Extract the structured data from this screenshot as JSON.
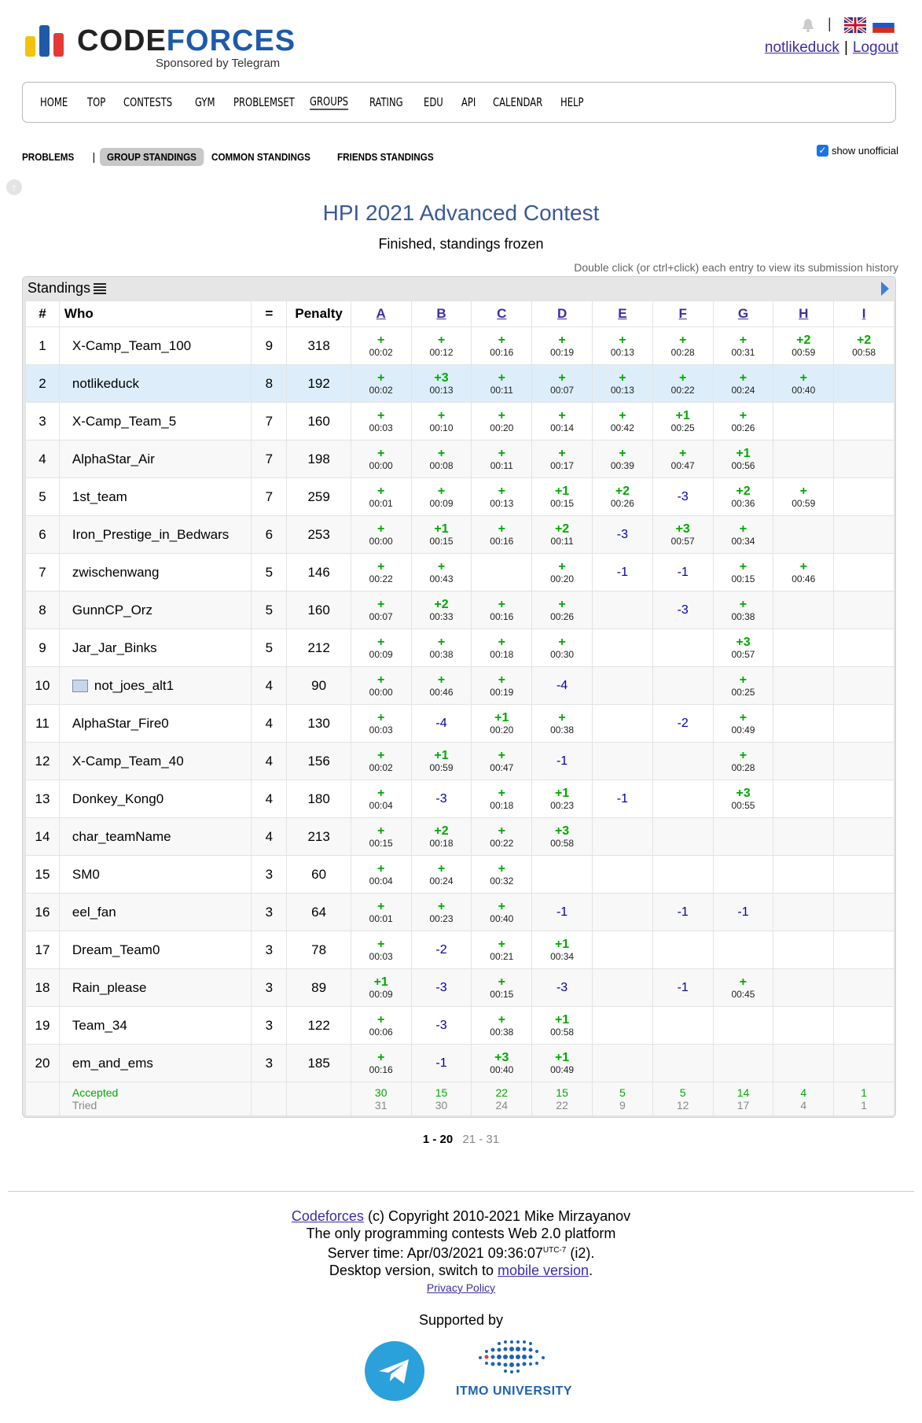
{
  "header": {
    "logo_part1": "CODE",
    "logo_part2": "FORCES",
    "logo_sub": "Sponsored by Telegram",
    "username": "notlikeduck",
    "separator": "|",
    "logout": "Logout",
    "colors": {
      "yellow": "#f4c20d",
      "blue": "#1e5aa8",
      "red": "#e53935"
    }
  },
  "menu": [
    "HOME",
    "TOP",
    "CONTESTS",
    "GYM",
    "PROBLEMSET",
    "GROUPS",
    "RATING",
    "EDU",
    "API",
    "CALENDAR",
    "HELP"
  ],
  "menu_active": "GROUPS",
  "second_menu": {
    "problems": "PROBLEMS",
    "pipe": "|",
    "group_standings": "GROUP STANDINGS",
    "common_standings": "COMMON STANDINGS",
    "friends_standings": "FRIENDS STANDINGS",
    "show_unofficial": "show unofficial"
  },
  "contest": {
    "title": "HPI 2021 Advanced Contest",
    "status": "Finished, standings frozen",
    "hint": "Double click (or ctrl+click) each entry to view its submission history"
  },
  "standings": {
    "caption": "Standings",
    "headers": {
      "rank": "#",
      "who": "Who",
      "solved": "=",
      "penalty": "Penalty"
    },
    "problems": [
      "A",
      "B",
      "C",
      "D",
      "E",
      "F",
      "G",
      "H",
      "I"
    ],
    "rows": [
      {
        "rank": "1",
        "who": "X-Camp_Team_100",
        "solved": "9",
        "penalty": "318",
        "cells": [
          [
            "+",
            "00:02"
          ],
          [
            "+",
            "00:12"
          ],
          [
            "+",
            "00:16"
          ],
          [
            "+",
            "00:19"
          ],
          [
            "+",
            "00:13"
          ],
          [
            "+",
            "00:28"
          ],
          [
            "+",
            "00:31"
          ],
          [
            "+2",
            "00:59"
          ],
          [
            "+2",
            "00:58"
          ]
        ]
      },
      {
        "rank": "2",
        "who": "notlikeduck",
        "solved": "8",
        "penalty": "192",
        "me": true,
        "cells": [
          [
            "+",
            "00:02"
          ],
          [
            "+3",
            "00:13"
          ],
          [
            "+",
            "00:11"
          ],
          [
            "+",
            "00:07"
          ],
          [
            "+",
            "00:13"
          ],
          [
            "+",
            "00:22"
          ],
          [
            "+",
            "00:24"
          ],
          [
            "+",
            "00:40"
          ],
          [
            "",
            ""
          ]
        ]
      },
      {
        "rank": "3",
        "who": "X-Camp_Team_5",
        "solved": "7",
        "penalty": "160",
        "cells": [
          [
            "+",
            "00:03"
          ],
          [
            "+",
            "00:10"
          ],
          [
            "+",
            "00:20"
          ],
          [
            "+",
            "00:14"
          ],
          [
            "+",
            "00:42"
          ],
          [
            "+1",
            "00:25"
          ],
          [
            "+",
            "00:26"
          ],
          [
            "",
            ""
          ],
          [
            "",
            ""
          ]
        ]
      },
      {
        "rank": "4",
        "who": "AlphaStar_Air",
        "solved": "7",
        "penalty": "198",
        "cells": [
          [
            "+",
            "00:00"
          ],
          [
            "+",
            "00:08"
          ],
          [
            "+",
            "00:11"
          ],
          [
            "+",
            "00:17"
          ],
          [
            "+",
            "00:39"
          ],
          [
            "+",
            "00:47"
          ],
          [
            "+1",
            "00:56"
          ],
          [
            "",
            ""
          ],
          [
            "",
            ""
          ]
        ]
      },
      {
        "rank": "5",
        "who": "1st_team",
        "solved": "7",
        "penalty": "259",
        "cells": [
          [
            "+",
            "00:01"
          ],
          [
            "+",
            "00:09"
          ],
          [
            "+",
            "00:13"
          ],
          [
            "+1",
            "00:15"
          ],
          [
            "+2",
            "00:26"
          ],
          [
            "-3",
            ""
          ],
          [
            "+2",
            "00:36"
          ],
          [
            "+",
            "00:59"
          ],
          [
            "",
            ""
          ]
        ]
      },
      {
        "rank": "6",
        "who": "Iron_Prestige_in_Bedwars",
        "solved": "6",
        "penalty": "253",
        "cells": [
          [
            "+",
            "00:00"
          ],
          [
            "+1",
            "00:15"
          ],
          [
            "+",
            "00:16"
          ],
          [
            "+2",
            "00:11"
          ],
          [
            "-3",
            ""
          ],
          [
            "+3",
            "00:57"
          ],
          [
            "+",
            "00:34"
          ],
          [
            "",
            ""
          ],
          [
            "",
            ""
          ]
        ]
      },
      {
        "rank": "7",
        "who": "zwischenwang",
        "solved": "5",
        "penalty": "146",
        "cells": [
          [
            "+",
            "00:22"
          ],
          [
            "+",
            "00:43"
          ],
          [
            "",
            ""
          ],
          [
            "+",
            "00:20"
          ],
          [
            "-1",
            ""
          ],
          [
            "-1",
            ""
          ],
          [
            "+",
            "00:15"
          ],
          [
            "+",
            "00:46"
          ],
          [
            "",
            ""
          ]
        ]
      },
      {
        "rank": "8",
        "who": "GunnCP_Orz",
        "solved": "5",
        "penalty": "160",
        "cells": [
          [
            "+",
            "00:07"
          ],
          [
            "+2",
            "00:33"
          ],
          [
            "+",
            "00:16"
          ],
          [
            "+",
            "00:26"
          ],
          [
            "",
            ""
          ],
          [
            "-3",
            ""
          ],
          [
            "+",
            "00:38"
          ],
          [
            "",
            ""
          ],
          [
            "",
            ""
          ]
        ]
      },
      {
        "rank": "9",
        "who": "Jar_Jar_Binks",
        "solved": "5",
        "penalty": "212",
        "cells": [
          [
            "+",
            "00:09"
          ],
          [
            "+",
            "00:38"
          ],
          [
            "+",
            "00:18"
          ],
          [
            "+",
            "00:30"
          ],
          [
            "",
            ""
          ],
          [
            "",
            ""
          ],
          [
            "+3",
            "00:57"
          ],
          [
            "",
            ""
          ],
          [
            "",
            ""
          ]
        ]
      },
      {
        "rank": "10",
        "who": "not_joes_alt1",
        "solved": "4",
        "penalty": "90",
        "flag": true,
        "cells": [
          [
            "+",
            "00:00"
          ],
          [
            "+",
            "00:46"
          ],
          [
            "+",
            "00:19"
          ],
          [
            "-4",
            ""
          ],
          [
            "",
            ""
          ],
          [
            "",
            ""
          ],
          [
            "+",
            "00:25"
          ],
          [
            "",
            ""
          ],
          [
            "",
            ""
          ]
        ]
      },
      {
        "rank": "11",
        "who": "AlphaStar_Fire0",
        "solved": "4",
        "penalty": "130",
        "cells": [
          [
            "+",
            "00:03"
          ],
          [
            "-4",
            ""
          ],
          [
            "+1",
            "00:20"
          ],
          [
            "+",
            "00:38"
          ],
          [
            "",
            ""
          ],
          [
            "-2",
            ""
          ],
          [
            "+",
            "00:49"
          ],
          [
            "",
            ""
          ],
          [
            "",
            ""
          ]
        ]
      },
      {
        "rank": "12",
        "who": "X-Camp_Team_40",
        "solved": "4",
        "penalty": "156",
        "cells": [
          [
            "+",
            "00:02"
          ],
          [
            "+1",
            "00:59"
          ],
          [
            "+",
            "00:47"
          ],
          [
            "-1",
            ""
          ],
          [
            "",
            ""
          ],
          [
            "",
            ""
          ],
          [
            "+",
            "00:28"
          ],
          [
            "",
            ""
          ],
          [
            "",
            ""
          ]
        ]
      },
      {
        "rank": "13",
        "who": "Donkey_Kong0",
        "solved": "4",
        "penalty": "180",
        "cells": [
          [
            "+",
            "00:04"
          ],
          [
            "-3",
            ""
          ],
          [
            "+",
            "00:18"
          ],
          [
            "+1",
            "00:23"
          ],
          [
            "-1",
            ""
          ],
          [
            "",
            ""
          ],
          [
            "+3",
            "00:55"
          ],
          [
            "",
            ""
          ],
          [
            "",
            ""
          ]
        ]
      },
      {
        "rank": "14",
        "who": "char_teamName",
        "solved": "4",
        "penalty": "213",
        "cells": [
          [
            "+",
            "00:15"
          ],
          [
            "+2",
            "00:18"
          ],
          [
            "+",
            "00:22"
          ],
          [
            "+3",
            "00:58"
          ],
          [
            "",
            ""
          ],
          [
            "",
            ""
          ],
          [
            "",
            ""
          ],
          [
            "",
            ""
          ],
          [
            "",
            ""
          ]
        ]
      },
      {
        "rank": "15",
        "who": "SM0",
        "solved": "3",
        "penalty": "60",
        "cells": [
          [
            "+",
            "00:04"
          ],
          [
            "+",
            "00:24"
          ],
          [
            "+",
            "00:32"
          ],
          [
            "",
            ""
          ],
          [
            "",
            ""
          ],
          [
            "",
            ""
          ],
          [
            "",
            ""
          ],
          [
            "",
            ""
          ],
          [
            "",
            ""
          ]
        ]
      },
      {
        "rank": "16",
        "who": "eel_fan",
        "solved": "3",
        "penalty": "64",
        "cells": [
          [
            "+",
            "00:01"
          ],
          [
            "+",
            "00:23"
          ],
          [
            "+",
            "00:40"
          ],
          [
            "-1",
            ""
          ],
          [
            "",
            ""
          ],
          [
            "-1",
            ""
          ],
          [
            "-1",
            ""
          ],
          [
            "",
            ""
          ],
          [
            "",
            ""
          ]
        ]
      },
      {
        "rank": "17",
        "who": "Dream_Team0",
        "solved": "3",
        "penalty": "78",
        "cells": [
          [
            "+",
            "00:03"
          ],
          [
            "-2",
            ""
          ],
          [
            "+",
            "00:21"
          ],
          [
            "+1",
            "00:34"
          ],
          [
            "",
            ""
          ],
          [
            "",
            ""
          ],
          [
            "",
            ""
          ],
          [
            "",
            ""
          ],
          [
            "",
            ""
          ]
        ]
      },
      {
        "rank": "18",
        "who": "Rain_please",
        "solved": "3",
        "penalty": "89",
        "cells": [
          [
            "+1",
            "00:09"
          ],
          [
            "-3",
            ""
          ],
          [
            "+",
            "00:15"
          ],
          [
            "-3",
            ""
          ],
          [
            "",
            ""
          ],
          [
            "-1",
            ""
          ],
          [
            "+",
            "00:45"
          ],
          [
            "",
            ""
          ],
          [
            "",
            ""
          ]
        ]
      },
      {
        "rank": "19",
        "who": "Team_34",
        "solved": "3",
        "penalty": "122",
        "cells": [
          [
            "+",
            "00:06"
          ],
          [
            "-3",
            ""
          ],
          [
            "+",
            "00:38"
          ],
          [
            "+1",
            "00:58"
          ],
          [
            "",
            ""
          ],
          [
            "",
            ""
          ],
          [
            "",
            ""
          ],
          [
            "",
            ""
          ],
          [
            "",
            ""
          ]
        ]
      },
      {
        "rank": "20",
        "who": "em_and_ems",
        "solved": "3",
        "penalty": "185",
        "cells": [
          [
            "+",
            "00:16"
          ],
          [
            "-1",
            ""
          ],
          [
            "+3",
            "00:40"
          ],
          [
            "+1",
            "00:49"
          ],
          [
            "",
            ""
          ],
          [
            "",
            ""
          ],
          [
            "",
            ""
          ],
          [
            "",
            ""
          ],
          [
            "",
            ""
          ]
        ]
      }
    ],
    "totals": {
      "accepted_label": "Accepted",
      "tried_label": "Tried",
      "accepted": [
        "30",
        "15",
        "22",
        "15",
        "5",
        "5",
        "14",
        "4",
        "1"
      ],
      "tried": [
        "31",
        "30",
        "24",
        "22",
        "9",
        "12",
        "17",
        "4",
        "1"
      ]
    }
  },
  "pagination": {
    "current": "1 - 20",
    "other": "21 - 31"
  },
  "footer": {
    "codeforces_link": "Codeforces",
    "copyright": "(c) Copyright 2010-2021 Mike Mirzayanov",
    "platform": "The only programming contests Web 2.0 platform",
    "server_time_prefix": "Server time: Apr/03/2021 09:36:07",
    "utc": "UTC-7",
    "server_time_suffix": "(i2).",
    "desktop_prefix": "Desktop version, switch to",
    "mobile_link": "mobile version",
    "period": ".",
    "privacy": "Privacy Policy",
    "supported_by": "Supported by",
    "itmo": "ITMO UNIVERSITY"
  }
}
